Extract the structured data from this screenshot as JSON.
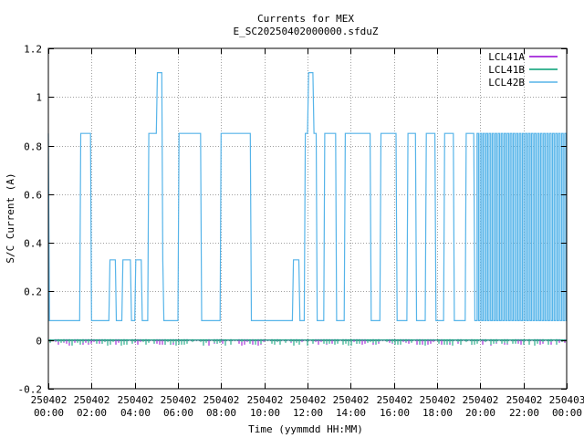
{
  "chart_data": {
    "type": "line",
    "title": "Currents for MEX",
    "subtitle": "E_SC20250402000000.sfduZ",
    "xlabel": "Time (yymmdd HH:MM)",
    "ylabel": "S/C Current (A)",
    "ylim": [
      -0.2,
      1.2
    ],
    "xlim_hours": [
      0,
      24
    ],
    "yticks": [
      -0.2,
      0,
      0.2,
      0.4,
      0.6,
      0.8,
      1,
      1.2
    ],
    "ytick_labels": [
      "-0.2",
      "0",
      "0.2",
      "0.4",
      "0.6",
      "0.8",
      "1",
      "1.2"
    ],
    "xticks": [
      {
        "hour": 0,
        "date": "250402",
        "time": "00:00"
      },
      {
        "hour": 2,
        "date": "250402",
        "time": "02:00"
      },
      {
        "hour": 4,
        "date": "250402",
        "time": "04:00"
      },
      {
        "hour": 6,
        "date": "250402",
        "time": "06:00"
      },
      {
        "hour": 8,
        "date": "250402",
        "time": "08:00"
      },
      {
        "hour": 10,
        "date": "250402",
        "time": "10:00"
      },
      {
        "hour": 12,
        "date": "250402",
        "time": "12:00"
      },
      {
        "hour": 14,
        "date": "250402",
        "time": "14:00"
      },
      {
        "hour": 16,
        "date": "250402",
        "time": "16:00"
      },
      {
        "hour": 18,
        "date": "250402",
        "time": "18:00"
      },
      {
        "hour": 20,
        "date": "250402",
        "time": "20:00"
      },
      {
        "hour": 22,
        "date": "250402",
        "time": "22:00"
      },
      {
        "hour": 24,
        "date": "250403",
        "time": "00:00"
      }
    ],
    "grid": true,
    "legend_position": "top-right",
    "series": [
      {
        "name": "LCL41A",
        "color": "#9400d3",
        "values": [
          [
            0,
            0.0
          ],
          [
            24,
            0.0
          ]
        ]
      },
      {
        "name": "LCL41B",
        "color": "#009e73",
        "values": [
          [
            0,
            0.0
          ],
          [
            24,
            0.0
          ]
        ]
      },
      {
        "name": "LCL42B",
        "color": "#56b4e9",
        "values": [
          [
            0.0,
            0.85
          ],
          [
            0.05,
            0.08
          ],
          [
            1.45,
            0.08
          ],
          [
            1.5,
            0.85
          ],
          [
            1.95,
            0.85
          ],
          [
            2.0,
            0.08
          ],
          [
            2.8,
            0.08
          ],
          [
            2.85,
            0.33
          ],
          [
            3.1,
            0.33
          ],
          [
            3.15,
            0.08
          ],
          [
            3.4,
            0.08
          ],
          [
            3.45,
            0.33
          ],
          [
            3.8,
            0.33
          ],
          [
            3.85,
            0.08
          ],
          [
            4.0,
            0.08
          ],
          [
            4.05,
            0.33
          ],
          [
            4.3,
            0.33
          ],
          [
            4.35,
            0.08
          ],
          [
            4.6,
            0.08
          ],
          [
            4.65,
            0.85
          ],
          [
            5.0,
            0.85
          ],
          [
            5.05,
            1.1
          ],
          [
            5.25,
            1.1
          ],
          [
            5.3,
            0.33
          ],
          [
            5.35,
            0.08
          ],
          [
            6.0,
            0.08
          ],
          [
            6.05,
            0.85
          ],
          [
            7.05,
            0.85
          ],
          [
            7.1,
            0.08
          ],
          [
            7.95,
            0.08
          ],
          [
            8.0,
            0.85
          ],
          [
            9.35,
            0.85
          ],
          [
            9.4,
            0.08
          ],
          [
            11.3,
            0.08
          ],
          [
            11.35,
            0.33
          ],
          [
            11.6,
            0.33
          ],
          [
            11.65,
            0.08
          ],
          [
            11.85,
            0.08
          ],
          [
            11.9,
            0.85
          ],
          [
            12.0,
            0.85
          ],
          [
            12.05,
            1.1
          ],
          [
            12.25,
            1.1
          ],
          [
            12.3,
            0.85
          ],
          [
            12.4,
            0.85
          ],
          [
            12.45,
            0.08
          ],
          [
            12.75,
            0.08
          ],
          [
            12.8,
            0.85
          ],
          [
            13.3,
            0.85
          ],
          [
            13.35,
            0.08
          ],
          [
            13.7,
            0.08
          ],
          [
            13.75,
            0.85
          ],
          [
            14.9,
            0.85
          ],
          [
            14.95,
            0.08
          ],
          [
            15.35,
            0.08
          ],
          [
            15.4,
            0.85
          ],
          [
            16.1,
            0.85
          ],
          [
            16.15,
            0.08
          ],
          [
            16.6,
            0.08
          ],
          [
            16.65,
            0.85
          ],
          [
            17.0,
            0.85
          ],
          [
            17.05,
            0.08
          ],
          [
            17.45,
            0.08
          ],
          [
            17.5,
            0.85
          ],
          [
            17.9,
            0.85
          ],
          [
            17.95,
            0.08
          ],
          [
            18.3,
            0.08
          ],
          [
            18.35,
            0.85
          ],
          [
            18.75,
            0.85
          ],
          [
            18.8,
            0.08
          ],
          [
            19.3,
            0.08
          ],
          [
            19.35,
            0.85
          ],
          [
            19.7,
            0.85
          ],
          [
            19.75,
            0.08
          ],
          [
            19.85,
            0.08
          ]
        ]
      }
    ],
    "oscillation": {
      "series": "LCL42B",
      "from_hour": 19.85,
      "to_hour": 24,
      "low": 0.08,
      "high": 0.85,
      "period_hours": 0.14
    }
  }
}
